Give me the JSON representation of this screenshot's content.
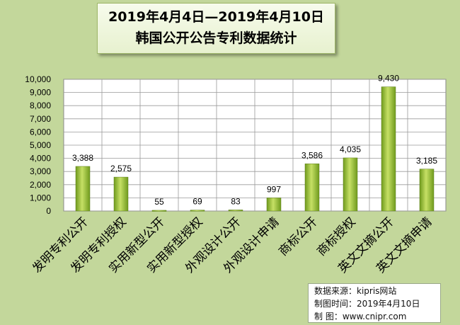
{
  "title_line1": "2019年4月4日—2019年4月10日",
  "title_line2": "韩国公开公告专利数据统计",
  "chart_data": {
    "type": "bar",
    "categories": [
      "发明专利公开",
      "发明专利授权",
      "实用新型公开",
      "实用新型授权",
      "外观设计公开",
      "外观设计申请",
      "商标公开",
      "商标授权",
      "英文文摘公开",
      "英文文摘申请"
    ],
    "values": [
      3388,
      2575,
      55,
      69,
      83,
      997,
      3586,
      4035,
      9430,
      3185
    ],
    "value_labels": [
      "3,388",
      "2,575",
      "55",
      "69",
      "83",
      "997",
      "3,586",
      "4,035",
      "9,430",
      "3,185"
    ],
    "yticks": [
      0,
      1000,
      2000,
      3000,
      4000,
      5000,
      6000,
      7000,
      8000,
      9000,
      10000
    ],
    "ytick_labels": [
      "0",
      "1,000",
      "2,000",
      "3,000",
      "4,000",
      "5,000",
      "6,000",
      "7,000",
      "8,000",
      "9,000",
      "10,000"
    ],
    "ylim": [
      0,
      10000
    ],
    "grid": true,
    "colors": {
      "bar_light": "#c6e065",
      "bar_dark": "#6f9a1d",
      "plot_bg": "#ffffff",
      "grid": "#9a9a9a"
    }
  },
  "source": {
    "line1": "数据来源：kipris网站",
    "line2": "制图时间：2019年4月10日",
    "line3": "制    图：www.cnipr.com"
  }
}
